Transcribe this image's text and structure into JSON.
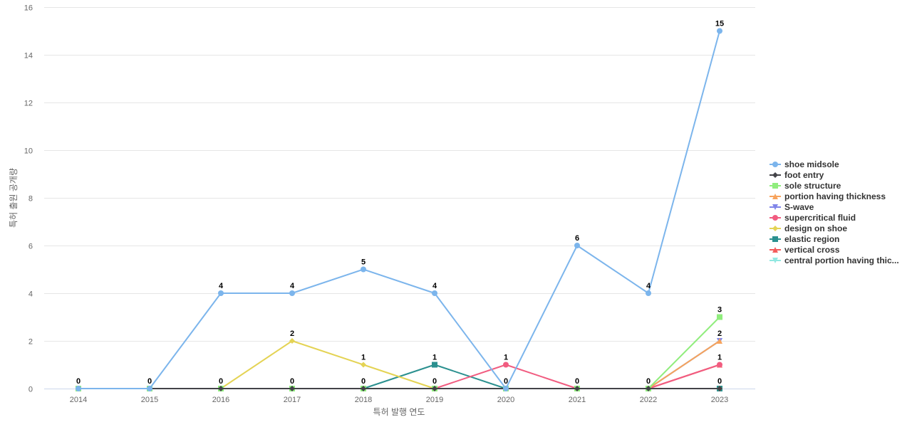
{
  "chart_data": {
    "type": "line",
    "xlabel": "특허 발행 연도",
    "ylabel": "특허 출원 공개량",
    "x": [
      "2014",
      "2015",
      "2016",
      "2017",
      "2018",
      "2019",
      "2020",
      "2021",
      "2022",
      "2023"
    ],
    "ylim": [
      0,
      16
    ],
    "yticks": [
      "0",
      "2",
      "4",
      "6",
      "8",
      "10",
      "12",
      "14",
      "16"
    ],
    "grid": true,
    "legend_position": "right",
    "series": [
      {
        "name": "shoe midsole",
        "color": "#7cb5ec",
        "marker": "circle",
        "values": [
          0,
          0,
          4,
          4,
          5,
          4,
          0,
          6,
          4,
          15
        ]
      },
      {
        "name": "foot entry",
        "color": "#434348",
        "marker": "diamond",
        "values": [
          0,
          0,
          0,
          0,
          0,
          0,
          0,
          0,
          0,
          0
        ]
      },
      {
        "name": "sole structure",
        "color": "#90ed7d",
        "marker": "square",
        "values": [
          0,
          0,
          0,
          0,
          0,
          0,
          0,
          0,
          0,
          3
        ]
      },
      {
        "name": "portion having thickness",
        "color": "#f7a35c",
        "marker": "triangle",
        "values": [
          0,
          0,
          0,
          0,
          0,
          0,
          0,
          0,
          0,
          2
        ]
      },
      {
        "name": "S-wave",
        "color": "#8085e9",
        "marker": "triangle-down",
        "values": [
          0,
          0,
          0,
          0,
          0,
          0,
          0,
          0,
          0,
          2
        ]
      },
      {
        "name": "supercritical fluid",
        "color": "#f15c80",
        "marker": "circle",
        "values": [
          0,
          0,
          0,
          0,
          0,
          0,
          1,
          0,
          0,
          1
        ]
      },
      {
        "name": "design on shoe",
        "color": "#e4d354",
        "marker": "diamond",
        "values": [
          0,
          0,
          0,
          2,
          1,
          0,
          0,
          0,
          0,
          0
        ]
      },
      {
        "name": "elastic region",
        "color": "#2b908f",
        "marker": "square",
        "values": [
          0,
          0,
          0,
          0,
          0,
          1,
          0,
          0,
          0,
          0
        ]
      },
      {
        "name": "vertical cross",
        "color": "#f45b5b",
        "marker": "triangle",
        "values": [
          0,
          0,
          0,
          0,
          0,
          0,
          0,
          0,
          0,
          1
        ]
      },
      {
        "name": "central portion having thic...",
        "color": "#91e8e1",
        "marker": "triangle-down",
        "values": [
          0,
          0,
          0,
          0,
          0,
          0,
          0,
          0,
          0,
          2
        ]
      }
    ],
    "data_labels": [
      {
        "x": "2014",
        "value": 0,
        "text": "0"
      },
      {
        "x": "2015",
        "value": 0,
        "text": "0"
      },
      {
        "x": "2016",
        "value": 4,
        "text": "4"
      },
      {
        "x": "2016",
        "value": 0,
        "text": "0"
      },
      {
        "x": "2017",
        "value": 4,
        "text": "4"
      },
      {
        "x": "2017",
        "value": 2,
        "text": "2"
      },
      {
        "x": "2017",
        "value": 0,
        "text": "0"
      },
      {
        "x": "2018",
        "value": 5,
        "text": "5"
      },
      {
        "x": "2018",
        "value": 1,
        "text": "1"
      },
      {
        "x": "2018",
        "value": 0,
        "text": "0"
      },
      {
        "x": "2019",
        "value": 4,
        "text": "4"
      },
      {
        "x": "2019",
        "value": 1,
        "text": "1"
      },
      {
        "x": "2019",
        "value": 0,
        "text": "0"
      },
      {
        "x": "2020",
        "value": 1,
        "text": "1"
      },
      {
        "x": "2020",
        "value": 0,
        "text": "0"
      },
      {
        "x": "2021",
        "value": 6,
        "text": "6"
      },
      {
        "x": "2021",
        "value": 0,
        "text": "0"
      },
      {
        "x": "2022",
        "value": 4,
        "text": "4"
      },
      {
        "x": "2022",
        "value": 0,
        "text": "0"
      },
      {
        "x": "2023",
        "value": 15,
        "text": "15"
      },
      {
        "x": "2023",
        "value": 3,
        "text": "3"
      },
      {
        "x": "2023",
        "value": 2,
        "text": "2"
      },
      {
        "x": "2023",
        "value": 1,
        "text": "1"
      },
      {
        "x": "2023",
        "value": 0,
        "text": "0"
      }
    ]
  }
}
